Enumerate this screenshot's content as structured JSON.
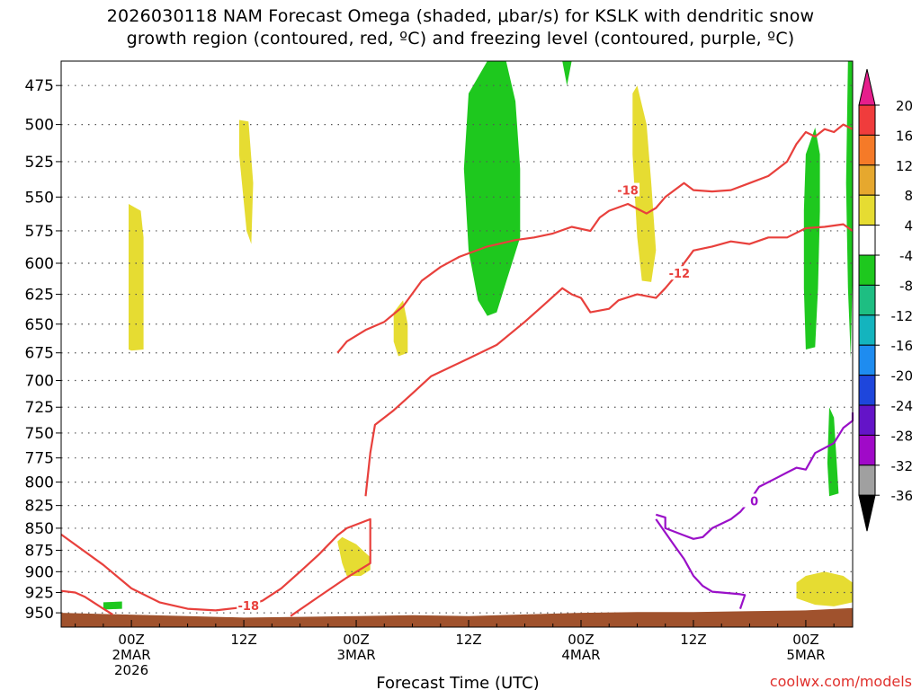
{
  "title": {
    "line1": "2026030118 NAM Forecast Omega (shaded, μbar/s) for KSLK with dendritic snow",
    "line2": "growth region (contoured, red, ºC) and freezing level (contoured, purple, ºC)"
  },
  "chart_data": {
    "type": "time-height",
    "xlabel": "Forecast Time (UTC)",
    "x_range_hours": [
      -7.5,
      77
    ],
    "x_ticks": [
      {
        "hour": 0,
        "lines": [
          "00Z",
          "2MAR",
          "2026"
        ]
      },
      {
        "hour": 12,
        "lines": [
          "12Z"
        ]
      },
      {
        "hour": 24,
        "lines": [
          "00Z",
          "3MAR"
        ]
      },
      {
        "hour": 36,
        "lines": [
          "12Z"
        ]
      },
      {
        "hour": 48,
        "lines": [
          "00Z",
          "4MAR"
        ]
      },
      {
        "hour": 60,
        "lines": [
          "12Z"
        ]
      },
      {
        "hour": 72,
        "lines": [
          "00Z",
          "5MAR"
        ]
      }
    ],
    "ylabel": "",
    "y_range_hpa": [
      460,
      968
    ],
    "y_ticks": [
      "475",
      "500",
      "525",
      "550",
      "575",
      "600",
      "625",
      "650",
      "675",
      "700",
      "725",
      "750",
      "775",
      "800",
      "825",
      "850",
      "875",
      "900",
      "925",
      "950"
    ],
    "colorbar": {
      "labels": [
        "20",
        "16",
        "12",
        "8",
        "4",
        "-4",
        "-8",
        "-12",
        "-16",
        "-20",
        "-24",
        "-28",
        "-32",
        "-36"
      ],
      "colors": [
        "#e61e8c",
        "#f03c3c",
        "#f57a28",
        "#e6a82e",
        "#e6dc32",
        "#ffffff",
        "#1ec81e",
        "#1ebe82",
        "#14b4be",
        "#1e8cf0",
        "#1e46dc",
        "#6414c8",
        "#a00ac8",
        "#a0a0a0",
        "#000000"
      ]
    },
    "contour_labels": {
      "dgz_upper": "-18",
      "dgz_lower": "-12",
      "dgz_low_level": "-18",
      "freezing": "0"
    },
    "colors": {
      "dgz": "#e8403c",
      "freezing": "#9a10c8",
      "ground": "#a0522d",
      "omega_pos": "#e6dc32",
      "omega_neg": "#1ec81e"
    },
    "dgz_upper_line": [
      [
        22,
        675
      ],
      [
        23,
        665
      ],
      [
        25,
        655
      ],
      [
        27,
        648
      ],
      [
        29,
        635
      ],
      [
        31,
        614
      ],
      [
        33,
        603
      ],
      [
        35,
        595
      ],
      [
        38,
        587
      ],
      [
        41,
        582
      ],
      [
        43,
        580
      ],
      [
        45,
        577
      ],
      [
        47,
        572
      ],
      [
        49,
        575
      ],
      [
        50,
        565
      ],
      [
        51,
        560
      ],
      [
        53,
        555
      ],
      [
        55,
        562
      ],
      [
        56,
        558
      ],
      [
        57,
        550
      ],
      [
        59,
        540
      ],
      [
        60,
        545
      ],
      [
        62,
        546
      ],
      [
        64,
        545
      ],
      [
        66,
        540
      ],
      [
        68,
        535
      ],
      [
        70,
        525
      ],
      [
        71,
        513
      ],
      [
        72,
        505
      ],
      [
        73,
        508
      ],
      [
        74,
        503
      ],
      [
        75,
        505
      ],
      [
        76,
        500
      ],
      [
        77,
        503
      ]
    ],
    "dgz_lower_line": [
      [
        25,
        815
      ],
      [
        25.5,
        770
      ],
      [
        26,
        742
      ],
      [
        28,
        728
      ],
      [
        30,
        712
      ],
      [
        32,
        696
      ],
      [
        34,
        688
      ],
      [
        36,
        680
      ],
      [
        39,
        668
      ],
      [
        42,
        648
      ],
      [
        44,
        634
      ],
      [
        46,
        620
      ],
      [
        47,
        625
      ],
      [
        48,
        628
      ],
      [
        49,
        640
      ],
      [
        51,
        637
      ],
      [
        52,
        630
      ],
      [
        54,
        625
      ],
      [
        56,
        628
      ],
      [
        57,
        620
      ],
      [
        58,
        611
      ],
      [
        59,
        600
      ],
      [
        60,
        590
      ],
      [
        62,
        587
      ],
      [
        64,
        583
      ],
      [
        66,
        585
      ],
      [
        68,
        580
      ],
      [
        70,
        580
      ],
      [
        72,
        573
      ],
      [
        74,
        572
      ],
      [
        76,
        570
      ],
      [
        77,
        575
      ]
    ],
    "dgz_low_level_line": [
      [
        -7.5,
        857
      ],
      [
        -3,
        892
      ],
      [
        0,
        920
      ],
      [
        3,
        937
      ],
      [
        6,
        945
      ],
      [
        9,
        947
      ],
      [
        12,
        943
      ],
      [
        14,
        935
      ],
      [
        16,
        920
      ],
      [
        18,
        900
      ],
      [
        20,
        880
      ],
      [
        22,
        858
      ],
      [
        23,
        850
      ],
      [
        25.5,
        840
      ],
      [
        25.5,
        890
      ],
      [
        23,
        907
      ],
      [
        20,
        930
      ],
      [
        17,
        954
      ]
    ],
    "dgz_low_left_line": [
      [
        -7.5,
        923
      ],
      [
        -6,
        925
      ],
      [
        -5,
        930
      ],
      [
        -3,
        945
      ],
      [
        -2,
        952
      ]
    ],
    "freezing_line": [
      [
        56,
        835
      ],
      [
        57,
        838
      ],
      [
        57,
        850
      ],
      [
        59,
        858
      ],
      [
        60,
        862
      ],
      [
        61,
        860
      ],
      [
        62,
        850
      ],
      [
        63,
        845
      ],
      [
        64,
        840
      ],
      [
        65,
        832
      ],
      [
        66,
        820
      ],
      [
        67,
        805
      ],
      [
        68,
        800
      ],
      [
        69,
        795
      ],
      [
        70,
        790
      ],
      [
        71,
        785
      ],
      [
        72,
        787
      ],
      [
        73,
        770
      ],
      [
        74,
        765
      ],
      [
        75,
        760
      ],
      [
        76,
        745
      ],
      [
        77,
        738
      ],
      [
        77,
        730
      ]
    ],
    "freezing_low_line": [
      [
        56,
        840
      ],
      [
        58,
        870
      ],
      [
        59,
        885
      ],
      [
        60,
        905
      ],
      [
        61,
        917
      ],
      [
        62,
        924
      ],
      [
        63,
        925
      ],
      [
        65,
        927
      ],
      [
        65.5,
        928
      ],
      [
        65,
        945
      ]
    ],
    "omega_pos_patches": [
      [
        [
          -0.3,
          555
        ],
        [
          1,
          560
        ],
        [
          1.3,
          580
        ],
        [
          1.3,
          672
        ],
        [
          0,
          673
        ],
        [
          -0.3,
          672
        ]
      ],
      [
        [
          11.5,
          497
        ],
        [
          12.5,
          498
        ],
        [
          13,
          540
        ],
        [
          12.8,
          585
        ],
        [
          12.3,
          575
        ],
        [
          11.8,
          540
        ],
        [
          11.5,
          520
        ]
      ],
      [
        [
          22,
          865
        ],
        [
          22.5,
          860
        ],
        [
          24,
          868
        ],
        [
          25.5,
          883
        ],
        [
          25.5,
          898
        ],
        [
          24.5,
          905
        ],
        [
          23,
          905
        ],
        [
          22.5,
          890
        ]
      ],
      [
        [
          28,
          640
        ],
        [
          29,
          630
        ],
        [
          29.5,
          650
        ],
        [
          29.5,
          675
        ],
        [
          28.5,
          678
        ],
        [
          28,
          665
        ]
      ],
      [
        [
          53.5,
          480
        ],
        [
          54,
          475
        ],
        [
          55,
          500
        ],
        [
          55.5,
          540
        ],
        [
          56,
          590
        ],
        [
          55.5,
          615
        ],
        [
          54.5,
          614
        ],
        [
          54,
          580
        ],
        [
          53.5,
          520
        ]
      ],
      [
        [
          71,
          913
        ],
        [
          72,
          905
        ],
        [
          74,
          900
        ],
        [
          76,
          905
        ],
        [
          77,
          913
        ],
        [
          77,
          937
        ],
        [
          75,
          942
        ],
        [
          73,
          940
        ],
        [
          71,
          932
        ]
      ]
    ],
    "omega_neg_patches": [
      [
        [
          36,
          480
        ],
        [
          38,
          460
        ],
        [
          40,
          460
        ],
        [
          41,
          485
        ],
        [
          41.5,
          530
        ],
        [
          41.5,
          580
        ],
        [
          40,
          615
        ],
        [
          39,
          640
        ],
        [
          38,
          643
        ],
        [
          37,
          630
        ],
        [
          36,
          590
        ],
        [
          35.5,
          530
        ]
      ],
      [
        [
          46,
          460
        ],
        [
          47,
          460
        ],
        [
          46.5,
          475
        ]
      ],
      [
        [
          72,
          520
        ],
        [
          73,
          502
        ],
        [
          73.5,
          520
        ],
        [
          73.5,
          560
        ],
        [
          73.3,
          620
        ],
        [
          73,
          670
        ],
        [
          72,
          672
        ],
        [
          71.8,
          620
        ],
        [
          71.8,
          560
        ]
      ],
      [
        [
          76.5,
          460
        ],
        [
          77,
          460
        ],
        [
          77,
          600
        ],
        [
          76.8,
          680
        ],
        [
          76.5,
          620
        ],
        [
          76.3,
          540
        ]
      ],
      [
        [
          74.5,
          725
        ],
        [
          75,
          735
        ],
        [
          75.5,
          812
        ],
        [
          74.5,
          815
        ],
        [
          74.3,
          780
        ]
      ],
      [
        [
          -3,
          937
        ],
        [
          -1,
          936
        ],
        [
          -1,
          945
        ],
        [
          -3,
          946
        ]
      ]
    ],
    "ground_profile": [
      [
        -7.5,
        950
      ],
      [
        -1,
        952
      ],
      [
        6,
        954
      ],
      [
        12,
        956
      ],
      [
        18,
        955
      ],
      [
        24,
        954
      ],
      [
        30,
        953
      ],
      [
        36,
        954
      ],
      [
        42,
        952
      ],
      [
        48,
        950
      ],
      [
        54,
        949
      ],
      [
        60,
        949
      ],
      [
        66,
        948
      ],
      [
        72,
        947
      ],
      [
        77,
        944
      ]
    ]
  },
  "footer": {
    "credit": "coolwx.com/models"
  }
}
